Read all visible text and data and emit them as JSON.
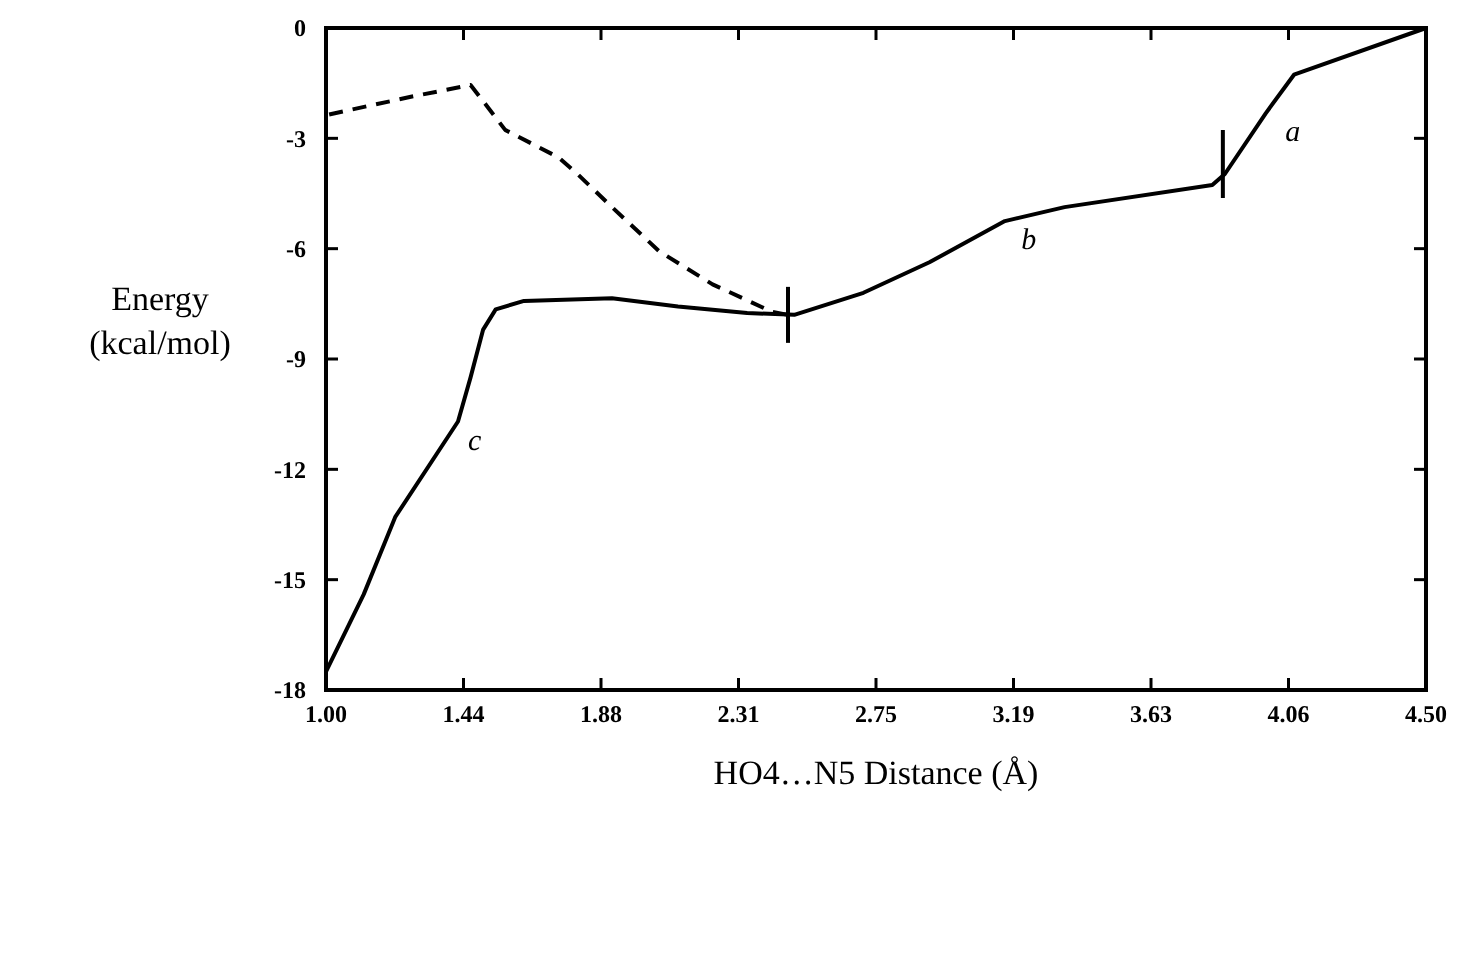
{
  "chart_data": {
    "type": "line",
    "xlabel": "HO4…N5 Distance (Å)",
    "ylabel": "Energy\n(kcal/mol)",
    "xlim": [
      1,
      4.5
    ],
    "ylim": [
      -18,
      0
    ],
    "xticks": [
      {
        "value": 1,
        "label": "1.00"
      },
      {
        "value": 1.4375,
        "label": "1.44"
      },
      {
        "value": 1.875,
        "label": "1.88"
      },
      {
        "value": 2.3125,
        "label": "2.31"
      },
      {
        "value": 2.75,
        "label": "2.75"
      },
      {
        "value": 3.1875,
        "label": "3.19"
      },
      {
        "value": 3.625,
        "label": "3.63"
      },
      {
        "value": 4.0625,
        "label": "4.06"
      },
      {
        "value": 4.5,
        "label": "4.50"
      }
    ],
    "yticks": [
      -18,
      -15,
      -12,
      -9,
      -6,
      -3,
      0
    ],
    "grid": false,
    "series": [
      {
        "color": "#000000",
        "line_style": "solid",
        "x": [
          1.0,
          1.12,
          1.22,
          1.42,
          1.46,
          1.5,
          1.54,
          1.63,
          1.91,
          2.12,
          2.34,
          2.49,
          2.71,
          2.92,
          3.16,
          3.35,
          3.82,
          3.86,
          3.99,
          4.08,
          4.5
        ],
        "values": [
          -17.5,
          -15.4,
          -13.3,
          -10.7,
          -9.5,
          -8.2,
          -7.65,
          -7.42,
          -7.35,
          -7.57,
          -7.75,
          -7.8,
          -7.2,
          -6.37,
          -5.25,
          -4.87,
          -4.27,
          -3.97,
          -2.32,
          -1.27,
          0
        ]
      },
      {
        "color": "#000000",
        "line_style": "dashed",
        "x": [
          1.01,
          1.27,
          1.46,
          1.51,
          1.57,
          1.74,
          1.8,
          1.91,
          2.06,
          2.23,
          2.42,
          2.47
        ],
        "values": [
          -2.35,
          -1.87,
          -1.55,
          -2.1,
          -2.77,
          -3.52,
          -3.97,
          -4.87,
          -6.07,
          -6.97,
          -7.72,
          -7.8
        ]
      }
    ],
    "annotations": [
      {
        "text": "c",
        "x": 1.42,
        "y": -10.7
      },
      {
        "text": "b",
        "x": 3.18,
        "y": -5.25
      },
      {
        "text": "a",
        "x": 4.02,
        "y": -2.3
      }
    ]
  }
}
